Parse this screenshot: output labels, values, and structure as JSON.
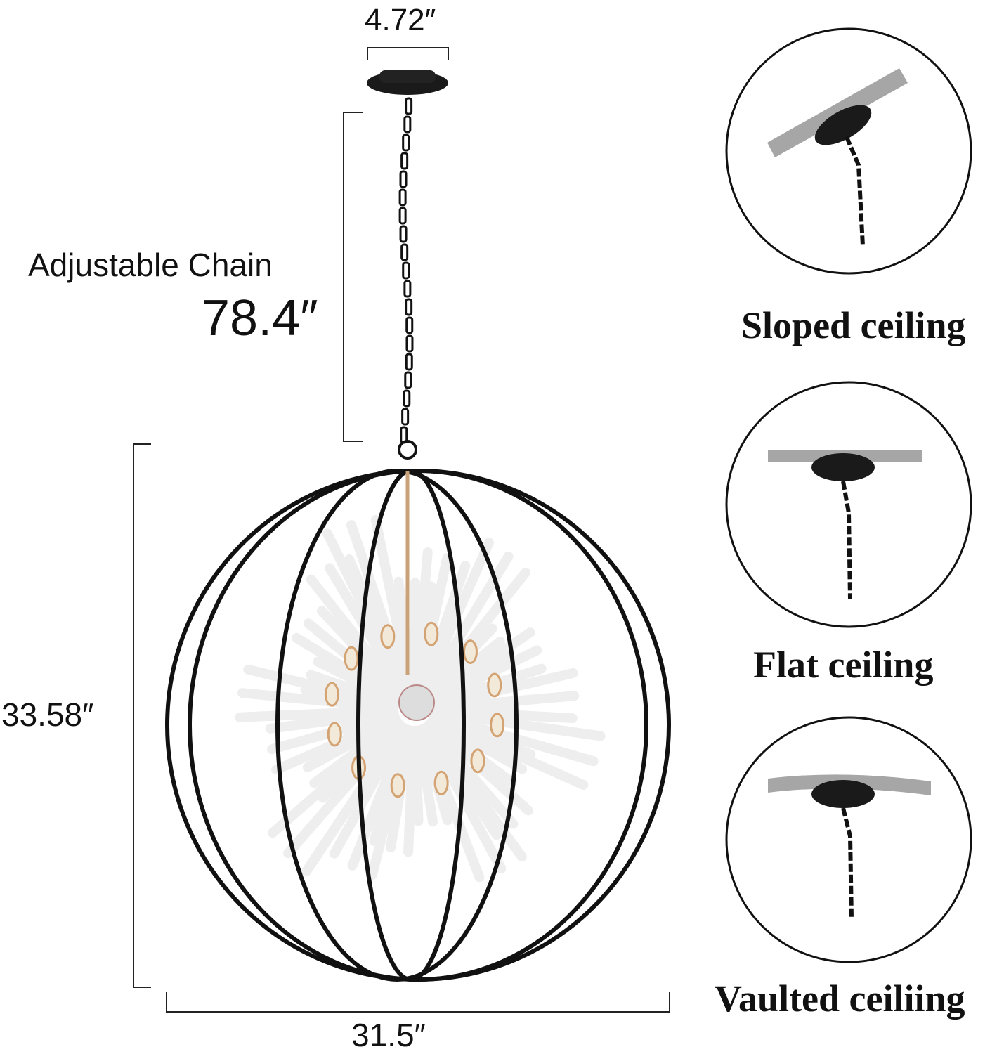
{
  "dimensions": {
    "canopy_width": "4.72″",
    "chain_label": "Adjustable Chain",
    "chain_length": "78.4″",
    "height": "33.58″",
    "width": "31.5″"
  },
  "ceiling_types": [
    {
      "label": "Sloped ceiling"
    },
    {
      "label": "Flat ceiling"
    },
    {
      "label": "Vaulted ceiliing"
    }
  ],
  "colors": {
    "frame": "#111111",
    "ceiling": "#a6a6a6",
    "rods": "#eeeeee",
    "bulb_socket": "#d4a373"
  }
}
